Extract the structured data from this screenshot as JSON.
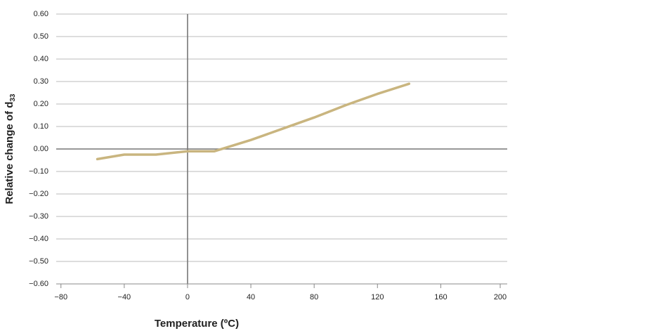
{
  "chart_data": {
    "type": "line",
    "xlabel": "Temperature (ºC)",
    "ylabel": "Relative change of d",
    "ylabel_sub": "33",
    "x": [
      -57,
      -40,
      -20,
      0,
      17,
      40,
      60,
      80,
      100,
      120,
      140
    ],
    "series": [
      {
        "color": "#c9b57f",
        "values": [
          -0.045,
          -0.025,
          -0.025,
          -0.01,
          -0.01,
          0.04,
          0.09,
          0.14,
          0.195,
          0.245,
          0.29
        ]
      }
    ],
    "xlim": [
      -83,
      202
    ],
    "xticks": [
      {
        "value": -80,
        "label": "−80"
      },
      {
        "value": -40,
        "label": "−40"
      },
      0,
      40,
      80,
      120,
      160,
      200
    ],
    "ylim": [
      -0.6,
      0.6
    ],
    "yticks": [
      {
        "value": 0.6,
        "label": "0.60"
      },
      {
        "value": 0.5,
        "label": "0.50"
      },
      {
        "value": 0.4,
        "label": "0.40"
      },
      {
        "value": 0.3,
        "label": "0.30"
      },
      {
        "value": 0.2,
        "label": "0.20"
      },
      {
        "value": 0.1,
        "label": "0.10"
      },
      {
        "value": 0,
        "label": "0.00"
      },
      {
        "value": -0.1,
        "label": "−0.10"
      },
      {
        "value": -0.2,
        "label": "−0.20"
      },
      {
        "value": -0.3,
        "label": "−0.30"
      },
      {
        "value": -0.4,
        "label": "−0.40"
      },
      {
        "value": -0.5,
        "label": "−0.50"
      },
      {
        "value": -0.6,
        "label": "−0.60"
      }
    ],
    "grid": true
  }
}
